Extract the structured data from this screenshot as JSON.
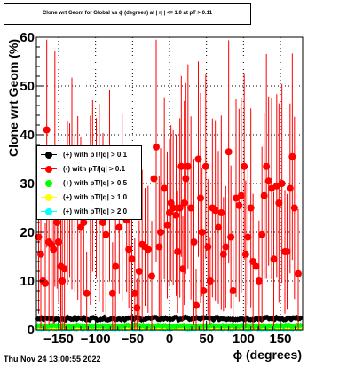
{
  "header": {
    "title": "Clone wrt Geom for Global vs ϕ (degrees) at | η | <= 1.0 at pT > 0.11"
  },
  "footer": {
    "datestamp": "Thu Nov 24 13:00:55 2022"
  },
  "colors": {
    "black": "#000000",
    "red": "#ff0000",
    "green": "#00ff00",
    "yellow": "#ffff00",
    "cyan": "#00ffff"
  },
  "chart_data": {
    "type": "scatter",
    "title": "Clone wrt Geom for Global vs ϕ (degrees) at | η | <= 1.0 at pT > 0.11",
    "xlabel": "ϕ (degrees)",
    "ylabel": "Clone wrt Geom (%)",
    "xlim": [
      -180,
      180
    ],
    "ylim": [
      0,
      60
    ],
    "grid": true,
    "legend_position": "left",
    "x_ticks": [
      -150,
      -100,
      -50,
      0,
      50,
      100,
      150
    ],
    "x_tick_labels": [
      "−150",
      "−100",
      "−50",
      "0",
      "50",
      "100",
      "150"
    ],
    "y_ticks": [
      0,
      10,
      20,
      30,
      40,
      50,
      60
    ],
    "y_tick_labels": [
      "0",
      "10",
      "20",
      "30",
      "40",
      "50",
      "60"
    ],
    "series": [
      {
        "name": "(+) with pT/|q| > 0.1",
        "color": "#000000",
        "level": 2.3,
        "band": 0.6
      },
      {
        "name": "(-) with pT/|q| > 0.1",
        "color": "#ff0000",
        "points": [
          [
            -177,
            19
          ],
          [
            -174,
            15.5
          ],
          [
            -171,
            10
          ],
          [
            -168,
            9.5
          ],
          [
            -166,
            41
          ],
          [
            -163,
            18
          ],
          [
            -160,
            17.5
          ],
          [
            -157,
            16.5
          ],
          [
            -155,
            33
          ],
          [
            -152,
            22
          ],
          [
            -150,
            18
          ],
          [
            -147,
            13
          ],
          [
            -145,
            10
          ],
          [
            -142,
            12.5
          ],
          [
            -138,
            26
          ],
          [
            -135,
            26.5
          ],
          [
            -132,
            30
          ],
          [
            -128,
            24
          ],
          [
            -124,
            25
          ],
          [
            -120,
            21
          ],
          [
            -116,
            22
          ],
          [
            -112,
            7.5
          ],
          [
            -107,
            24.5
          ],
          [
            -104,
            29.5
          ],
          [
            -99,
            27
          ],
          [
            -95,
            26
          ],
          [
            -90,
            22
          ],
          [
            -86,
            19.5
          ],
          [
            -81,
            29.5
          ],
          [
            -77,
            7.5
          ],
          [
            -73,
            13
          ],
          [
            -68,
            21
          ],
          [
            -64,
            25
          ],
          [
            -58,
            22.5
          ],
          [
            -55,
            16.5
          ],
          [
            -51,
            14.5
          ],
          [
            -47,
            7.5
          ],
          [
            -44,
            4.5
          ],
          [
            -41,
            12
          ],
          [
            -37,
            17.5
          ],
          [
            -33,
            17
          ],
          [
            -29,
            16.5
          ],
          [
            -24,
            11
          ],
          [
            -21,
            31
          ],
          [
            -18,
            37.5
          ],
          [
            -14,
            17
          ],
          [
            -12,
            20
          ],
          [
            -7,
            29
          ],
          [
            -3,
            21.5
          ],
          [
            0,
            24
          ],
          [
            2,
            26
          ],
          [
            5,
            25
          ],
          [
            9,
            23.5
          ],
          [
            11,
            16
          ],
          [
            14,
            25
          ],
          [
            16,
            33.5
          ],
          [
            18,
            12.5
          ],
          [
            20,
            26
          ],
          [
            22,
            31
          ],
          [
            25,
            33.5
          ],
          [
            29,
            25
          ],
          [
            33,
            18
          ],
          [
            36,
            5
          ],
          [
            39,
            35
          ],
          [
            42,
            27
          ],
          [
            44,
            20
          ],
          [
            46,
            8
          ],
          [
            49,
            33.5
          ],
          [
            52,
            17
          ],
          [
            55,
            10
          ],
          [
            58,
            25
          ],
          [
            62,
            24.5
          ],
          [
            66,
            21
          ],
          [
            70,
            24
          ],
          [
            73,
            15.5
          ],
          [
            76,
            17
          ],
          [
            80,
            36.5
          ],
          [
            83,
            19
          ],
          [
            86,
            8
          ],
          [
            90,
            27
          ],
          [
            94,
            25.5
          ],
          [
            97,
            27.5
          ],
          [
            101,
            33.5
          ],
          [
            103,
            15.5
          ],
          [
            106,
            19
          ],
          [
            110,
            25
          ],
          [
            113,
            14
          ],
          [
            117,
            13
          ],
          [
            121,
            10
          ],
          [
            125,
            19.5
          ],
          [
            128,
            27.5
          ],
          [
            131,
            33.5
          ],
          [
            134,
            30.5
          ],
          [
            138,
            29
          ],
          [
            141,
            14.5
          ],
          [
            145,
            29.5
          ],
          [
            148,
            26
          ],
          [
            152,
            30
          ],
          [
            156,
            16
          ],
          [
            159,
            16
          ],
          [
            163,
            29
          ],
          [
            166,
            35.5
          ],
          [
            169,
            25
          ],
          [
            174,
            11.5
          ]
        ]
      },
      {
        "name": "(+) with pT/|q| > 0.5",
        "color": "#00ff00",
        "level": 0.8,
        "band": 0.3
      },
      {
        "name": "(+) with pT/|q| > 1.0",
        "color": "#ffff00",
        "level": 0.5,
        "band": 0.3
      },
      {
        "name": "(+) with pT/|q| > 2.0",
        "color": "#00ffff",
        "level": 0.3,
        "band": 0.2
      }
    ]
  }
}
